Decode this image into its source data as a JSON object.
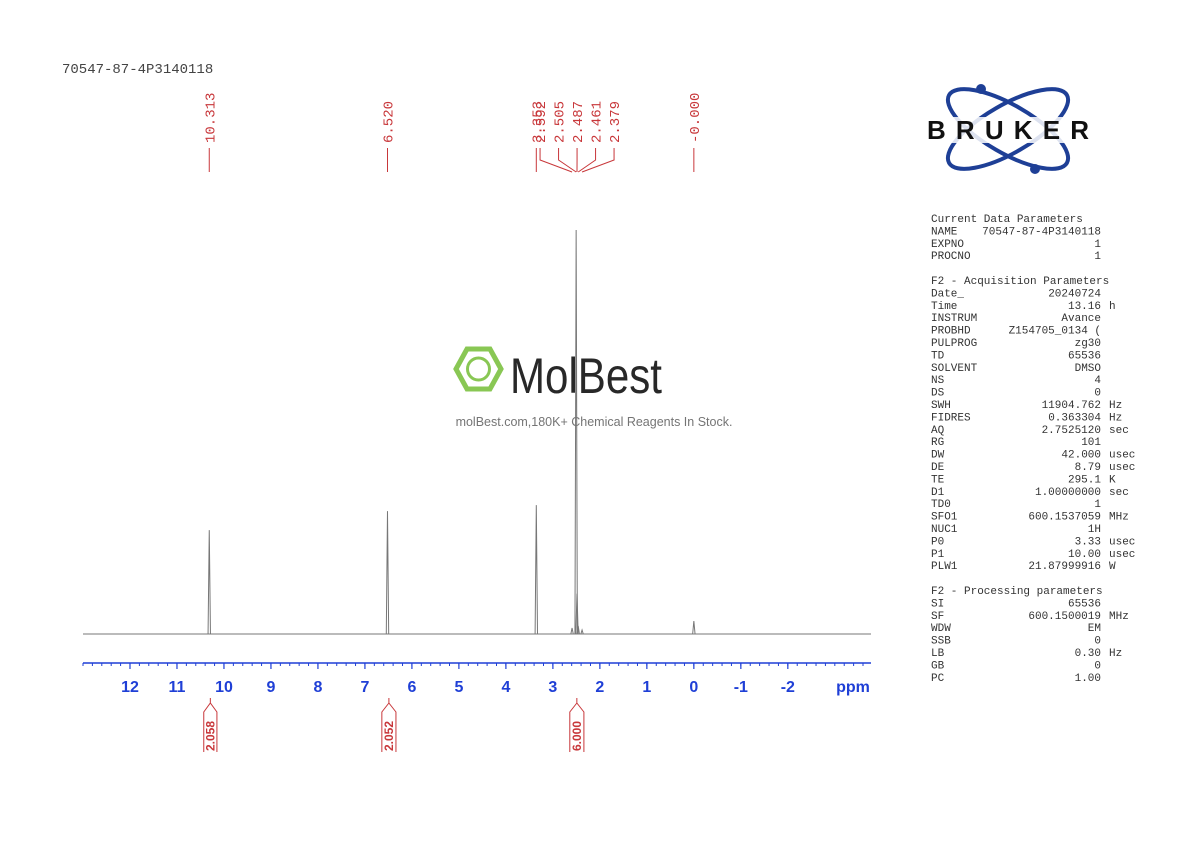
{
  "sample_name": "70547-87-4P3140118",
  "logo": "BRUKER",
  "watermark": {
    "name": "MolBest",
    "slogan": "molBest.com,180K+ Chemical Reagents In Stock."
  },
  "chart_data": {
    "type": "nmr",
    "x_label": "ppm",
    "xlim": [
      13,
      -3.77
    ],
    "xticks": [
      12,
      11,
      10,
      9,
      8,
      7,
      6,
      5,
      4,
      3,
      2,
      1,
      0,
      -1,
      -2
    ],
    "minor_tick_step": 0.2,
    "ylim": [
      0,
      100
    ],
    "color": "#777777",
    "label_color": "#c8373a",
    "axis_color": "#1f3fd6",
    "x": [
      10.313,
      {
        "value": 6.52,
        "label": "6.520"
      },
      3.353,
      2.592,
      2.505,
      2.487,
      2.461,
      2.379,
      {
        "value": 0,
        "label": "-0.000"
      }
    ],
    "values": [
      25.7,
      30.4,
      31.9,
      1.5,
      100,
      10,
      2,
      1,
      3.2
    ],
    "integrals": [
      {
        "from": 10.43,
        "to": 10.15,
        "value": 2.058
      },
      {
        "from": 6.64,
        "to": 6.34,
        "value": 2.052
      },
      {
        "from": 2.64,
        "to": 2.34,
        "value": {
          "value": 6,
          "label": "6.000"
        }
      }
    ]
  },
  "parameters": [
    {
      "title": "Current Data Parameters",
      "rows": [
        [
          "NAME",
          "70547-87-4P3140118"
        ],
        [
          "EXPNO",
          "1"
        ],
        [
          "PROCNO",
          "1"
        ]
      ]
    },
    {
      "title": "F2 - Acquisition Parameters",
      "rows": [
        [
          "Date_",
          "20240724"
        ],
        [
          "Time",
          "13.16",
          "h"
        ],
        [
          "INSTRUM",
          "Avance"
        ],
        [
          "PROBHD",
          "Z154705_0134 ("
        ],
        [
          "PULPROG",
          "zg30"
        ],
        [
          "TD",
          "65536"
        ],
        [
          "SOLVENT",
          "DMSO"
        ],
        [
          "NS",
          "4"
        ],
        [
          "DS",
          "0"
        ],
        [
          "SWH",
          "11904.762",
          "Hz"
        ],
        [
          "FIDRES",
          "0.363304",
          "Hz"
        ],
        [
          "AQ",
          "2.7525120",
          "sec"
        ],
        [
          "RG",
          "101"
        ],
        [
          "DW",
          "42.000",
          "usec"
        ],
        [
          "DE",
          "8.79",
          "usec"
        ],
        [
          "TE",
          "295.1",
          "K"
        ],
        [
          "D1",
          "1.00000000",
          "sec"
        ],
        [
          "TD0",
          "1"
        ],
        [
          "SFO1",
          "600.1537059",
          "MHz"
        ],
        [
          "NUC1",
          "1H"
        ],
        [
          "P0",
          "3.33",
          "usec"
        ],
        [
          "P1",
          "10.00",
          "usec"
        ],
        [
          "PLW1",
          "21.87999916",
          "W"
        ]
      ]
    },
    {
      "title": "F2 - Processing parameters",
      "rows": [
        [
          "SI",
          "65536"
        ],
        [
          "SF",
          "600.1500019",
          "MHz"
        ],
        [
          "WDW",
          "EM"
        ],
        [
          "SSB",
          "0"
        ],
        [
          "LB",
          "0.30",
          "Hz"
        ],
        [
          "GB",
          "0"
        ],
        [
          "PC",
          "1.00"
        ]
      ]
    }
  ]
}
